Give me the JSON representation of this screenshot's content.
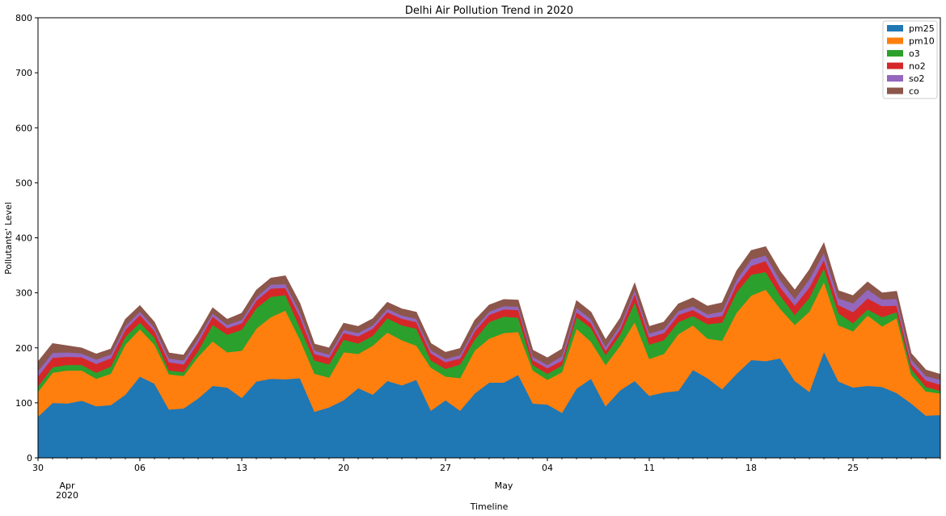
{
  "chart_data": {
    "type": "area",
    "stacked": true,
    "title": "Delhi Air Pollution Trend in 2020",
    "xlabel": "Timeline",
    "ylabel": "Pollutants' Level",
    "ylim": [
      0,
      800
    ],
    "yticks": [
      0,
      100,
      200,
      300,
      400,
      500,
      600,
      700,
      800
    ],
    "x_start": "2020-03-30",
    "x_end": "2020-05-31",
    "x_tick_labels": [
      {
        "date": "2020-03-30",
        "label": "30"
      },
      {
        "date": "2020-04-06",
        "label": "06"
      },
      {
        "date": "2020-04-13",
        "label": "13"
      },
      {
        "date": "2020-04-20",
        "label": "20"
      },
      {
        "date": "2020-04-27",
        "label": "27"
      },
      {
        "date": "2020-05-04",
        "label": "04"
      },
      {
        "date": "2020-05-11",
        "label": "11"
      },
      {
        "date": "2020-05-18",
        "label": "18"
      },
      {
        "date": "2020-05-25",
        "label": "25"
      }
    ],
    "x_month_labels": [
      {
        "date": "2020-04-01",
        "label": "Apr"
      },
      {
        "date": "2020-05-01",
        "label": "May"
      }
    ],
    "x_year_label": {
      "date": "2020-04-01",
      "label": "2020"
    },
    "legend_position": "top-right",
    "grid": false,
    "series": [
      {
        "name": "pm25",
        "color": "#1f77b4",
        "values": [
          75,
          100,
          99,
          104,
          94,
          96,
          115,
          148,
          135,
          88,
          90,
          108,
          131,
          128,
          109,
          139,
          144,
          143,
          145,
          84,
          92,
          105,
          127,
          115,
          140,
          132,
          142,
          86,
          105,
          86,
          117,
          137,
          137,
          151,
          99,
          97,
          82,
          126,
          144,
          94,
          123,
          140,
          113,
          119,
          122,
          160,
          145,
          125,
          153,
          178,
          176,
          181,
          140,
          120,
          193,
          139,
          128,
          131,
          129,
          118,
          99,
          77,
          78
        ]
      },
      {
        "name": "pm10",
        "color": "#ff7f0e",
        "values": [
          45,
          55,
          60,
          55,
          50,
          57,
          91,
          86,
          71,
          64,
          59,
          76,
          81,
          64,
          86,
          96,
          112,
          125,
          70,
          69,
          54,
          87,
          62,
          89,
          88,
          82,
          62,
          78,
          43,
          59,
          78,
          80,
          90,
          78,
          60,
          45,
          74,
          109,
          67,
          75,
          81,
          107,
          67,
          70,
          103,
          81,
          72,
          88,
          111,
          117,
          130,
          90,
          102,
          146,
          127,
          102,
          102,
          128,
          110,
          136,
          52,
          44,
          39
        ]
      },
      {
        "name": "o3",
        "color": "#2ca02c",
        "values": [
          10,
          10,
          10,
          10,
          11,
          13,
          14,
          12,
          13,
          7,
          7,
          10,
          30,
          32,
          38,
          37,
          37,
          28,
          22,
          24,
          24,
          23,
          19,
          18,
          26,
          27,
          31,
          13,
          14,
          25,
          20,
          30,
          30,
          26,
          10,
          11,
          12,
          21,
          25,
          18,
          20,
          36,
          26,
          25,
          22,
          17,
          26,
          33,
          37,
          38,
          32,
          24,
          18,
          25,
          25,
          22,
          15,
          11,
          17,
          11,
          11,
          8,
          5
        ]
      },
      {
        "name": "no2",
        "color": "#d62728",
        "values": [
          18,
          17,
          15,
          14,
          16,
          15,
          13,
          14,
          12,
          15,
          14,
          16,
          15,
          12,
          12,
          14,
          15,
          13,
          19,
          12,
          12,
          12,
          13,
          13,
          11,
          12,
          12,
          13,
          12,
          11,
          15,
          13,
          13,
          14,
          9,
          10,
          9,
          9,
          9,
          8,
          10,
          15,
          13,
          13,
          13,
          11,
          11,
          12,
          14,
          16,
          20,
          15,
          17,
          19,
          15,
          15,
          20,
          20,
          20,
          12,
          9,
          12,
          11
        ]
      },
      {
        "name": "so2",
        "color": "#9467bd",
        "values": [
          10,
          9,
          8,
          7,
          8,
          7,
          7,
          6,
          6,
          7,
          7,
          7,
          6,
          6,
          6,
          6,
          7,
          7,
          9,
          6,
          6,
          6,
          6,
          6,
          6,
          6,
          6,
          6,
          6,
          6,
          6,
          6,
          6,
          6,
          6,
          6,
          8,
          8,
          7,
          7,
          7,
          7,
          7,
          7,
          7,
          7,
          7,
          8,
          9,
          12,
          10,
          13,
          12,
          15,
          13,
          12,
          16,
          16,
          12,
          12,
          8,
          8,
          9
        ]
      },
      {
        "name": "co",
        "color": "#8c564b",
        "values": [
          17,
          17,
          12,
          10,
          10,
          10,
          12,
          11,
          10,
          10,
          10,
          10,
          10,
          10,
          12,
          13,
          12,
          15,
          16,
          12,
          12,
          12,
          12,
          12,
          12,
          12,
          12,
          12,
          12,
          12,
          14,
          12,
          12,
          12,
          12,
          13,
          13,
          13,
          13,
          13,
          13,
          13,
          13,
          13,
          13,
          15,
          15,
          16,
          16,
          16,
          16,
          16,
          16,
          17,
          18,
          14,
          14,
          14,
          12,
          14,
          11,
          11,
          10
        ]
      }
    ]
  }
}
